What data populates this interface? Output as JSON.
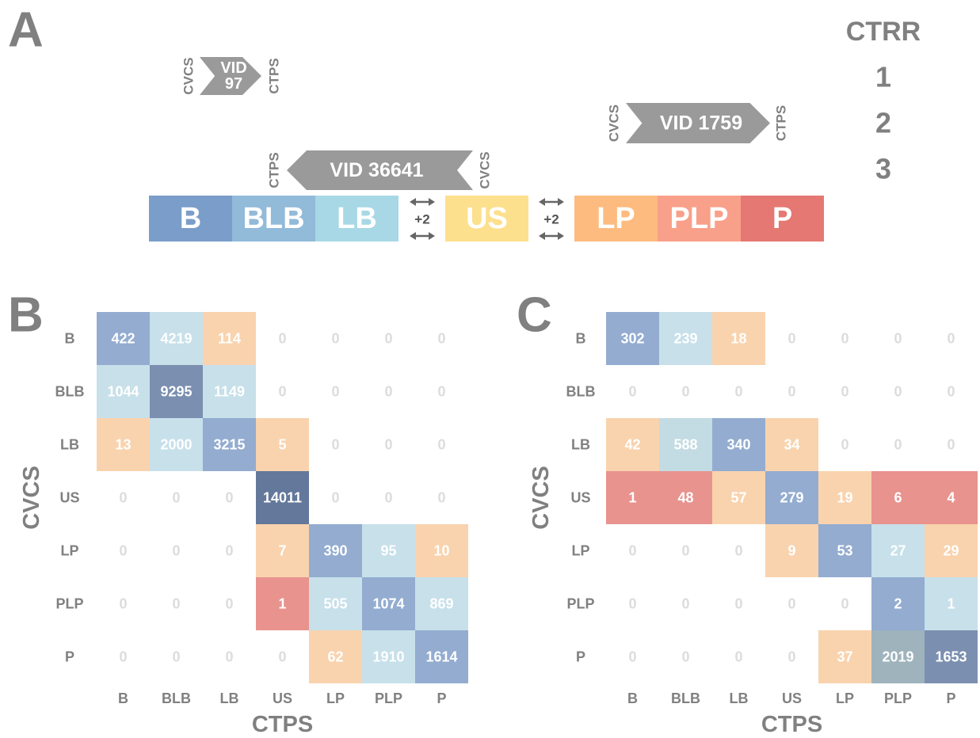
{
  "diagram": {
    "panel_label": "A",
    "legend_title": "CTRR",
    "legend_items": [
      "1",
      "2",
      "3"
    ],
    "segments": [
      {
        "label": "B",
        "color": "#7b9dc9"
      },
      {
        "label": "BLB",
        "color": "#92bad9"
      },
      {
        "label": "LB",
        "color": "#a8d8e6"
      },
      {
        "label": "US",
        "color": "#fde08d"
      },
      {
        "label": "LP",
        "color": "#fdbb7f"
      },
      {
        "label": "PLP",
        "color": "#f9a08a"
      },
      {
        "label": "P",
        "color": "#e57872"
      }
    ],
    "gaps": [
      "+2",
      "+2"
    ],
    "arrows": [
      {
        "label_lines": [
          "VID",
          "97"
        ],
        "left": "CVCS",
        "right": "CTPS"
      },
      {
        "label_lines": [
          "VID 1759"
        ],
        "left": "CVCS",
        "right": "CTPS"
      },
      {
        "label_lines": [
          "VID 36641"
        ],
        "left": "CTPS",
        "right": "CVCS"
      }
    ]
  },
  "chart_data": [
    {
      "type": "heatmap",
      "panel_label": "B",
      "x_label": "CTPS",
      "y_label": "CVCS",
      "categories": [
        "B",
        "BLB",
        "LB",
        "US",
        "LP",
        "PLP",
        "P"
      ],
      "rows": [
        "B",
        "BLB",
        "LB",
        "US",
        "LP",
        "PLP",
        "P"
      ],
      "values": [
        [
          422,
          4219,
          114,
          0,
          0,
          0,
          0
        ],
        [
          1044,
          9295,
          1149,
          0,
          0,
          0,
          0
        ],
        [
          13,
          2000,
          3215,
          5,
          0,
          0,
          0
        ],
        [
          0,
          0,
          0,
          14011,
          0,
          0,
          0
        ],
        [
          0,
          0,
          0,
          7,
          390,
          95,
          10
        ],
        [
          0,
          0,
          0,
          1,
          505,
          1074,
          869
        ],
        [
          0,
          0,
          0,
          0,
          62,
          1910,
          1614
        ]
      ],
      "colors": [
        [
          "#93acd0",
          "#c7e0ea",
          "#f9d3ae",
          null,
          null,
          null,
          null
        ],
        [
          "#c7e0ea",
          "#7b8fb0",
          "#c7e0ea",
          null,
          null,
          null,
          null
        ],
        [
          "#f9d3ae",
          "#c7e0ea",
          "#93acd0",
          "#f9d3ae",
          null,
          null,
          null
        ],
        [
          null,
          null,
          null,
          "#63789a",
          null,
          null,
          null
        ],
        [
          null,
          null,
          null,
          "#f9d3ae",
          "#93acd0",
          "#c7e0ea",
          "#f9d3ae"
        ],
        [
          null,
          null,
          null,
          "#e8938e",
          "#c7e0ea",
          "#93acd0",
          "#c7e0ea"
        ],
        [
          null,
          null,
          null,
          null,
          "#f9d3ae",
          "#c7e0ea",
          "#93acd0"
        ]
      ]
    },
    {
      "type": "heatmap",
      "panel_label": "C",
      "x_label": "CTPS",
      "y_label": "CVCS",
      "categories": [
        "B",
        "BLB",
        "LB",
        "US",
        "LP",
        "PLP",
        "P"
      ],
      "rows": [
        "B",
        "BLB",
        "LB",
        "US",
        "LP",
        "PLP",
        "P"
      ],
      "values": [
        [
          302,
          239,
          18,
          0,
          0,
          0,
          0
        ],
        [
          0,
          0,
          0,
          0,
          0,
          0,
          0
        ],
        [
          42,
          588,
          340,
          34,
          0,
          0,
          0
        ],
        [
          1,
          48,
          57,
          279,
          19,
          6,
          4
        ],
        [
          0,
          0,
          0,
          9,
          53,
          27,
          29
        ],
        [
          0,
          0,
          0,
          0,
          0,
          2,
          1
        ],
        [
          0,
          0,
          0,
          0,
          37,
          2019,
          1653
        ]
      ],
      "colors": [
        [
          "#93acd0",
          "#c7e0ea",
          "#f9d3ae",
          null,
          null,
          null,
          null
        ],
        [
          null,
          null,
          null,
          null,
          null,
          null,
          null
        ],
        [
          "#f9d3ae",
          "#c3dbe3",
          "#93acd0",
          "#f9d3ae",
          null,
          null,
          null
        ],
        [
          "#e8938e",
          "#e8938e",
          "#f9d3ae",
          "#93acd0",
          "#f9d3ae",
          "#e8938e",
          "#e8938e"
        ],
        [
          null,
          null,
          null,
          "#f9d3ae",
          "#93acd0",
          "#c7e0ea",
          "#f9d3ae"
        ],
        [
          null,
          null,
          null,
          null,
          null,
          "#93acd0",
          "#c7e0ea"
        ],
        [
          null,
          null,
          null,
          null,
          "#f9d3ae",
          "#9fb3bd",
          "#7b8fb0"
        ]
      ]
    }
  ]
}
